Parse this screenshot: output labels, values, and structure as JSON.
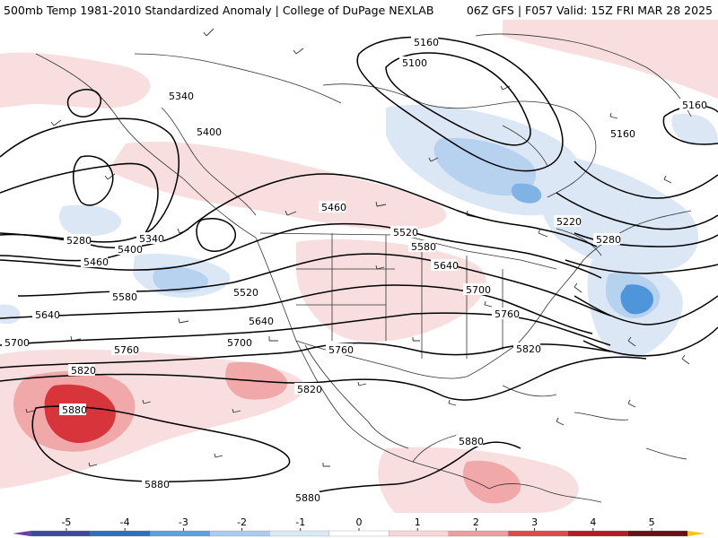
{
  "header": {
    "title_left": "500mb Temp 1981-2010 Standardized Anomaly | College of DuPage NEXLAB",
    "title_right": "06Z GFS | F057 Valid: 15Z FRI MAR 28 2025"
  },
  "contour_labels": [
    {
      "id": "c5160a",
      "text": "5160"
    },
    {
      "id": "c5100",
      "text": "5100"
    },
    {
      "id": "c5160b",
      "text": "5160"
    },
    {
      "id": "c5160c",
      "text": "5160"
    },
    {
      "id": "c5340a",
      "text": "5340"
    },
    {
      "id": "c5400a",
      "text": "5400"
    },
    {
      "id": "c5460a",
      "text": "5460"
    },
    {
      "id": "c5520a",
      "text": "5520"
    },
    {
      "id": "c5580a",
      "text": "5580"
    },
    {
      "id": "c5640a",
      "text": "5640"
    },
    {
      "id": "c5700a",
      "text": "5700"
    },
    {
      "id": "c5220",
      "text": "5220"
    },
    {
      "id": "c5280a",
      "text": "5280"
    },
    {
      "id": "c5760a",
      "text": "5760"
    },
    {
      "id": "c5820a",
      "text": "5820"
    },
    {
      "id": "c5280b",
      "text": "5280"
    },
    {
      "id": "c5340b",
      "text": "5340"
    },
    {
      "id": "c5400b",
      "text": "5400"
    },
    {
      "id": "c5460b",
      "text": "5460"
    },
    {
      "id": "c5580b",
      "text": "5580"
    },
    {
      "id": "c5520b",
      "text": "5520"
    },
    {
      "id": "c5640b",
      "text": "5640"
    },
    {
      "id": "c5640c",
      "text": "5640"
    },
    {
      "id": "c5700b",
      "text": "5700"
    },
    {
      "id": "c5700c",
      "text": "5700"
    },
    {
      "id": "c5760b",
      "text": "5760"
    },
    {
      "id": "c5760c",
      "text": "5760"
    },
    {
      "id": "c5820b",
      "text": "5820"
    },
    {
      "id": "c5820c",
      "text": "5820"
    },
    {
      "id": "c5880a",
      "text": "5880"
    },
    {
      "id": "c5880b",
      "text": "5880"
    },
    {
      "id": "c5880c",
      "text": "5880"
    },
    {
      "id": "c5880d",
      "text": "5880"
    }
  ],
  "legend": {
    "ticks": [
      "-5",
      "-4",
      "-3",
      "-2",
      "-1",
      "0",
      "1",
      "2",
      "3",
      "4",
      "5"
    ],
    "colors": [
      "#3a4a9c",
      "#2b6fc2",
      "#5aa2df",
      "#a9cdee",
      "#dbe8f5",
      "#ffffff",
      "#f6d6d6",
      "#ee9c9c",
      "#dc4c4c",
      "#b21c24",
      "#6b0f16"
    ],
    "end_left_color": "#6a3fa0",
    "end_right_color": "#f0c419"
  },
  "colors": {
    "warm_light": "#f8dede",
    "warm_mid": "#f0a8a8",
    "warm_strong": "#d8343c",
    "cool_light": "#dbe7f5",
    "cool_mid": "#b6d2ef",
    "cool_strong": "#4f95d9",
    "contour": "#000000",
    "border": "#333333"
  }
}
